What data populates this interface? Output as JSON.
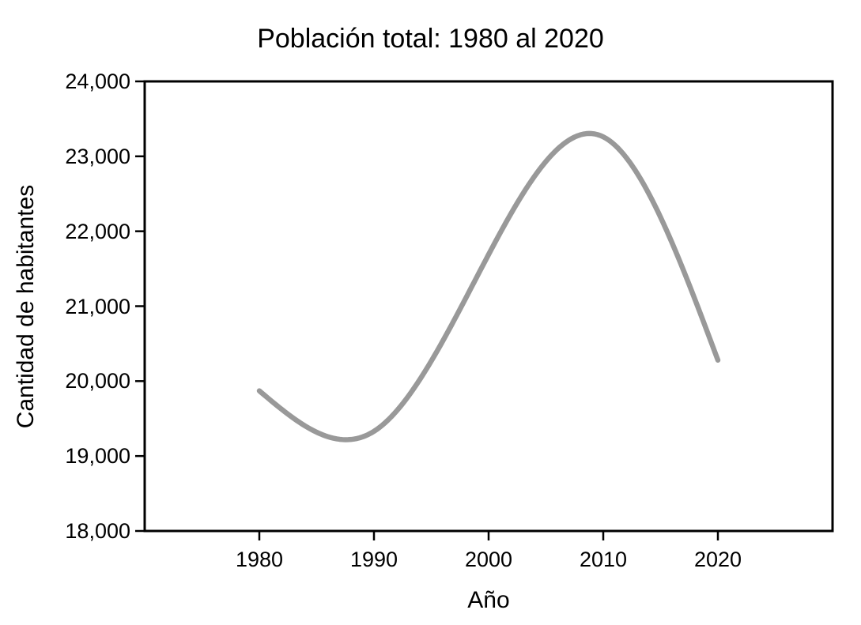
{
  "chart_data": {
    "type": "line",
    "title": "Población total: 1980 al 2020",
    "xlabel": "Año",
    "ylabel": "Cantidad de habitantes",
    "x": [
      1980,
      1990,
      2000,
      2010,
      2020
    ],
    "series": [
      {
        "name": "Población total",
        "values": [
          19870,
          19330,
          21690,
          23260,
          20280
        ]
      }
    ],
    "smoothing": "natural-cubic-spline",
    "observed_extrema": {
      "local_min": {
        "x": 1988,
        "value": 19230
      },
      "local_max": {
        "x": 2009,
        "value": 23300
      }
    },
    "xlim": [
      1970,
      2030
    ],
    "ylim": [
      18000,
      24000
    ],
    "x_ticks": [
      1980,
      1990,
      2000,
      2010,
      2020
    ],
    "x_tick_labels": [
      "1980",
      "1990",
      "2000",
      "2010",
      "2020"
    ],
    "y_ticks": [
      18000,
      19000,
      20000,
      21000,
      22000,
      23000,
      24000
    ],
    "y_tick_labels": [
      "18,000",
      "19,000",
      "20,000",
      "21,000",
      "22,000",
      "23,000",
      "24,000"
    ],
    "grid": false,
    "legend": "none",
    "line_color": "#999999",
    "axis_color": "#000000",
    "background_color": "#ffffff"
  }
}
